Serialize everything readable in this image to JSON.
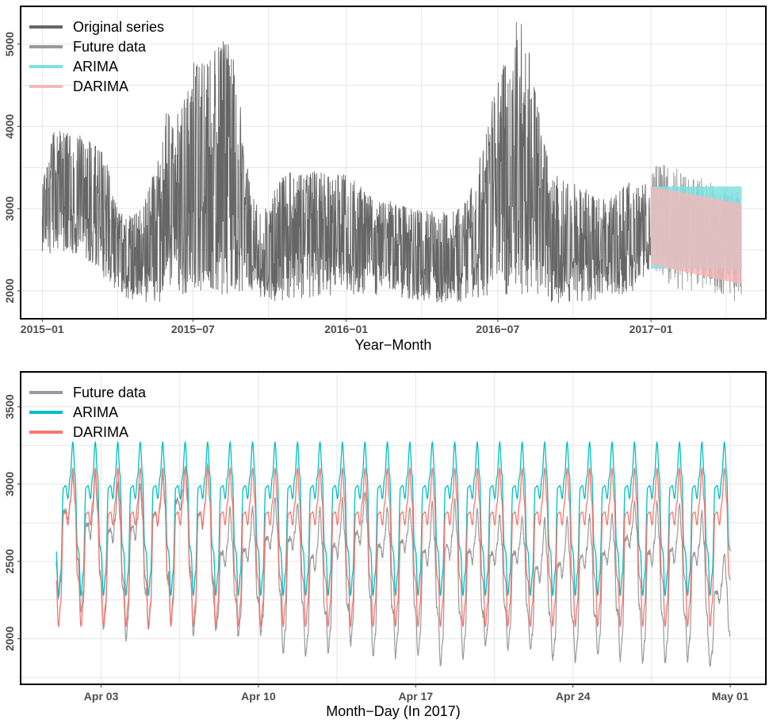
{
  "chart_data": [
    {
      "type": "line",
      "xlabel": "Year−Month",
      "ylabel": "",
      "x_ticks": [
        {
          "label": "2015−01",
          "t": 0
        },
        {
          "label": "2015−07",
          "t": 181
        },
        {
          "label": "2016−01",
          "t": 365
        },
        {
          "label": "2016−07",
          "t": 547
        },
        {
          "label": "2017−01",
          "t": 731
        }
      ],
      "x_unit": "days since 2015-01-01",
      "xlim": [
        -25,
        868
      ],
      "ylim": [
        1670,
        5450
      ],
      "y_ticks": [
        2000,
        3000,
        4000,
        5000
      ],
      "legend": [
        {
          "name": "Original series",
          "color": "#666666"
        },
        {
          "name": "Future data",
          "color": "#999999"
        },
        {
          "name": "ARIMA",
          "color": "#7fe0e0"
        },
        {
          "name": "DARIMA",
          "color": "#f5b8b8"
        }
      ],
      "legend_position": "top-left",
      "series": [
        {
          "name": "Original series",
          "color": "#666666",
          "x_range": [
            0,
            731
          ],
          "envelope": {
            "t": [
              0,
              15,
              30,
              45,
              60,
              75,
              90,
              100,
              110,
              120,
              130,
              140,
              150,
              160,
              170,
              180,
              190,
              200,
              210,
              220,
              230,
              240,
              250,
              260,
              270,
              280,
              290,
              300,
              315,
              330,
              345,
              360,
              380,
              400,
              420,
              440,
              460,
              480,
              500,
              510,
              520,
              530,
              540,
              550,
              560,
              570,
              580,
              590,
              600,
              610,
              620,
              640,
              660,
              680,
              700,
              715,
              731
            ],
            "low": [
              2400,
              2450,
              2450,
              2450,
              2300,
              2150,
              2000,
              1900,
              1880,
              1850,
              1850,
              1850,
              1950,
              1950,
              1950,
              1950,
              1950,
              1950,
              1950,
              1950,
              1950,
              1950,
              2000,
              1900,
              1850,
              1850,
              1850,
              1850,
              1850,
              1900,
              1900,
              1950,
              1950,
              1950,
              1950,
              1900,
              1850,
              1850,
              1850,
              1850,
              1900,
              1900,
              1950,
              1950,
              1950,
              1950,
              1950,
              1950,
              1900,
              1850,
              1850,
              1850,
              1850,
              1900,
              1950,
              2000,
              2250
            ],
            "high": [
              3300,
              4000,
              3950,
              3900,
              3800,
              3700,
              3000,
              2900,
              2950,
              3000,
              3300,
              3700,
              4300,
              4100,
              4300,
              4800,
              4900,
              5000,
              5000,
              5050,
              4900,
              4200,
              3200,
              3000,
              3000,
              3300,
              3400,
              3500,
              3400,
              3500,
              3400,
              3450,
              3300,
              3100,
              3100,
              3000,
              3000,
              2950,
              3000,
              3100,
              3400,
              3800,
              4300,
              4700,
              4900,
              5300,
              5200,
              4600,
              4000,
              3500,
              3400,
              3300,
              3200,
              3100,
              3300,
              3350,
              3300
            ]
          }
        },
        {
          "name": "Future data",
          "color": "#999999",
          "x_range": [
            731,
            840
          ],
          "envelope": {
            "t": [
              731,
              745,
              760,
              775,
              790,
              805,
              820,
              840
            ],
            "low": [
              2200,
              2150,
              2000,
              2000,
              2000,
              1950,
              1900,
              1850
            ],
            "high": [
              3500,
              3550,
              3500,
              3400,
              3400,
              3300,
              3250,
              3200
            ]
          }
        },
        {
          "name": "ARIMA",
          "color": "#7fe0e0",
          "band": {
            "t": [
              731,
              840
            ],
            "low": [
              2270,
              2270
            ],
            "high": [
              3270,
              3270
            ]
          }
        },
        {
          "name": "DARIMA",
          "color": "#f5b8b8",
          "band": {
            "t": [
              731,
              840
            ],
            "low": [
              2320,
              2080
            ],
            "high": [
              3270,
              3060
            ]
          }
        }
      ]
    },
    {
      "type": "line",
      "xlabel": "Month−Day (In 2017)",
      "ylabel": "",
      "x_ticks": [
        {
          "label": "Apr 03",
          "t": 2
        },
        {
          "label": "Apr 10",
          "t": 9
        },
        {
          "label": "Apr 17",
          "t": 16
        },
        {
          "label": "Apr 24",
          "t": 23
        },
        {
          "label": "May 01",
          "t": 30
        }
      ],
      "x_unit": "days since Apr 01, 2017",
      "xlim": [
        -1.55,
        31.55
      ],
      "ylim": [
        1710,
        3720
      ],
      "y_ticks": [
        2000,
        2500,
        3000,
        3500
      ],
      "legend": [
        {
          "name": "Future data",
          "color": "#999999"
        },
        {
          "name": "ARIMA",
          "color": "#00bfc4"
        },
        {
          "name": "DARIMA",
          "color": "#f8766d"
        }
      ],
      "legend_position": "top-left",
      "series": [
        {
          "name": "ARIMA",
          "color": "#00bfc4",
          "x_range": [
            0,
            30
          ],
          "daily_cycle": {
            "min": 2280,
            "peak": 3270,
            "shoulder": 2990
          }
        },
        {
          "name": "DARIMA",
          "color": "#f8766d",
          "x_range": [
            0,
            30
          ],
          "daily_cycle": {
            "min": 2080,
            "peak": 3100,
            "shoulder": 2820
          }
        },
        {
          "name": "Future data",
          "color": "#999999",
          "x_range": [
            0,
            30
          ],
          "daily_min": [
            2260,
            2180,
            2060,
            1990,
            2050,
            2110,
            2020,
            2050,
            2020,
            2020,
            1900,
            1890,
            1910,
            1960,
            1880,
            1880,
            1890,
            1830,
            1870,
            1950,
            1930,
            1930,
            1870,
            1850,
            1890,
            1860,
            1850,
            1840,
            1860,
            1820
          ],
          "daily_peak": [
            3050,
            3060,
            3000,
            2990,
            3050,
            3120,
            3130,
            2850,
            2850,
            2900,
            2870,
            2850,
            2900,
            2960,
            2850,
            2850,
            2880,
            2900,
            2840,
            2800,
            2780,
            2780,
            2780,
            2800,
            2800,
            2880,
            2880,
            2870,
            2820,
            2550
          ]
        }
      ]
    }
  ]
}
